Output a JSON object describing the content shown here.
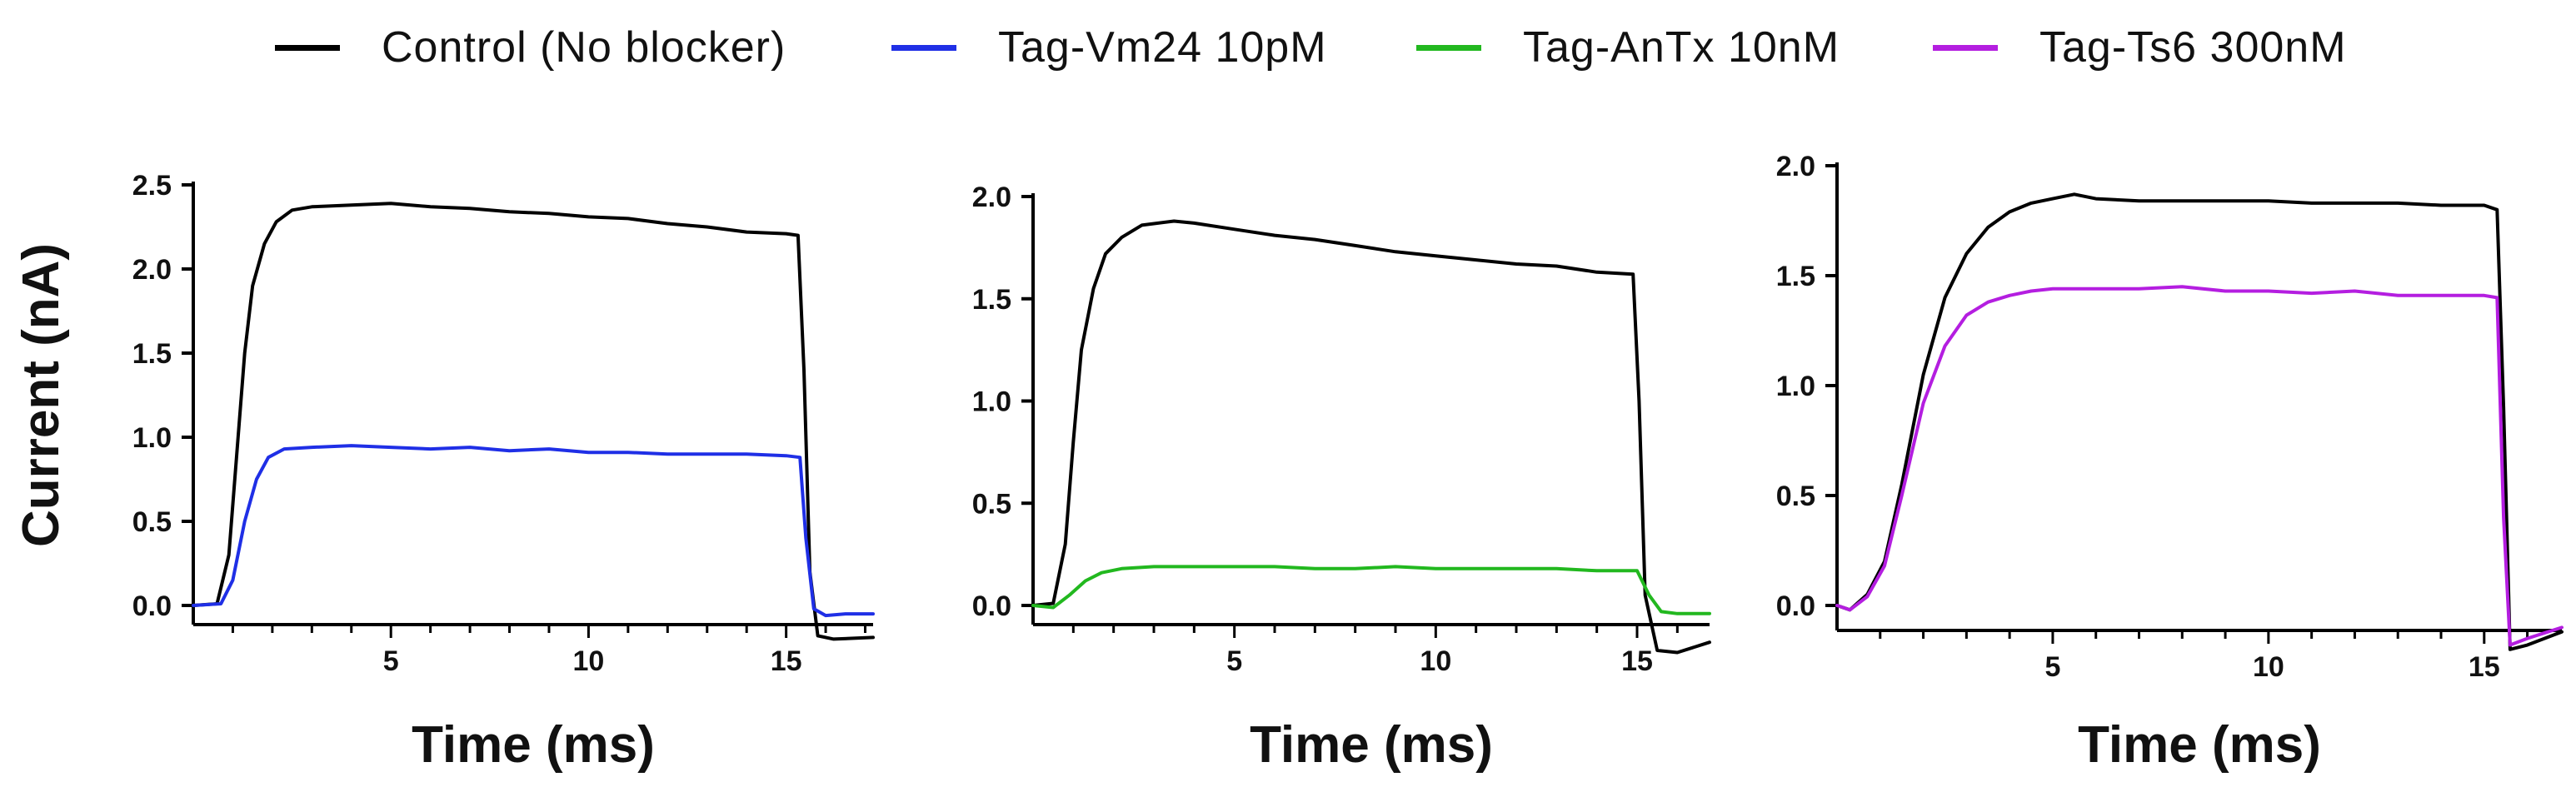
{
  "legend": [
    {
      "label": "Control (No blocker)",
      "color": "#000000"
    },
    {
      "label": "Tag-Vm24 10pM",
      "color": "#1f2fe6"
    },
    {
      "label": "Tag-AnTx 10nM",
      "color": "#22b81f"
    },
    {
      "label": "Tag-Ts6 300nM",
      "color": "#b41ee0"
    }
  ],
  "chart_data": [
    {
      "type": "line",
      "xlabel": "Time (ms)",
      "ylabel": "Current (nA)",
      "xlim": [
        0,
        17.2
      ],
      "ylim": [
        0,
        2.5
      ],
      "x_ticks": [
        5,
        10,
        15
      ],
      "x_tick_labels": [
        "5",
        "10",
        "15"
      ],
      "y_ticks": [
        0,
        0.5,
        1.0,
        1.5,
        2.0,
        2.5
      ],
      "y_tick_labels": [
        "0.0",
        "0.5",
        "1.0",
        "1.5",
        "2.0",
        "2.5"
      ],
      "grid": false,
      "series": [
        {
          "name": "Control (No blocker)",
          "color": "#000000",
          "x": [
            0,
            0.6,
            0.9,
            1.1,
            1.3,
            1.5,
            1.8,
            2.1,
            2.5,
            3,
            4,
            5,
            6,
            7,
            8,
            9,
            10,
            11,
            12,
            13,
            14,
            15,
            15.3,
            15.45,
            15.6,
            15.8,
            16.2,
            17.2
          ],
          "y": [
            0,
            0.01,
            0.3,
            0.9,
            1.5,
            1.9,
            2.15,
            2.28,
            2.35,
            2.37,
            2.38,
            2.39,
            2.37,
            2.36,
            2.34,
            2.33,
            2.31,
            2.3,
            2.27,
            2.25,
            2.22,
            2.21,
            2.2,
            1.4,
            0.2,
            -0.18,
            -0.2,
            -0.19
          ]
        },
        {
          "name": "Tag-Vm24 10pM",
          "color": "#1f2fe6",
          "x": [
            0,
            0.7,
            1.0,
            1.3,
            1.6,
            1.9,
            2.3,
            3,
            4,
            5,
            6,
            7,
            8,
            9,
            10,
            11,
            12,
            13,
            14,
            15,
            15.35,
            15.5,
            15.7,
            16.0,
            16.5,
            17.2
          ],
          "y": [
            0,
            0.01,
            0.15,
            0.5,
            0.75,
            0.88,
            0.93,
            0.94,
            0.95,
            0.94,
            0.93,
            0.94,
            0.92,
            0.93,
            0.91,
            0.91,
            0.9,
            0.9,
            0.9,
            0.89,
            0.88,
            0.4,
            -0.02,
            -0.06,
            -0.05,
            -0.05
          ]
        }
      ]
    },
    {
      "type": "line",
      "xlabel": "Time (ms)",
      "ylabel": "",
      "xlim": [
        0,
        16.8
      ],
      "ylim": [
        0,
        2.0
      ],
      "x_ticks": [
        5,
        10,
        15
      ],
      "x_tick_labels": [
        "5",
        "10",
        "15"
      ],
      "y_ticks": [
        0,
        0.5,
        1.0,
        1.5,
        2.0
      ],
      "y_tick_labels": [
        "0.0",
        "0.5",
        "1.0",
        "1.5",
        "2.0"
      ],
      "grid": false,
      "series": [
        {
          "name": "Control (No blocker)",
          "color": "#000000",
          "x": [
            0,
            0.5,
            0.8,
            1.0,
            1.2,
            1.5,
            1.8,
            2.2,
            2.7,
            3.5,
            4,
            5,
            6,
            7,
            8,
            9,
            10,
            11,
            12,
            13,
            14,
            14.9,
            15.05,
            15.2,
            15.5,
            16,
            16.8
          ],
          "y": [
            0,
            0.01,
            0.3,
            0.8,
            1.25,
            1.55,
            1.72,
            1.8,
            1.86,
            1.88,
            1.87,
            1.84,
            1.81,
            1.79,
            1.76,
            1.73,
            1.71,
            1.69,
            1.67,
            1.66,
            1.63,
            1.62,
            1.0,
            0.05,
            -0.22,
            -0.23,
            -0.18
          ]
        },
        {
          "name": "Tag-AnTx 10nM",
          "color": "#22b81f",
          "x": [
            0,
            0.5,
            0.9,
            1.3,
            1.7,
            2.2,
            3,
            4,
            5,
            6,
            7,
            8,
            9,
            10,
            11,
            12,
            13,
            14,
            15,
            15.3,
            15.6,
            16,
            16.8
          ],
          "y": [
            0,
            -0.01,
            0.05,
            0.12,
            0.16,
            0.18,
            0.19,
            0.19,
            0.19,
            0.19,
            0.18,
            0.18,
            0.19,
            0.18,
            0.18,
            0.18,
            0.18,
            0.17,
            0.17,
            0.05,
            -0.03,
            -0.04,
            -0.04
          ]
        }
      ]
    },
    {
      "type": "line",
      "xlabel": "Time (ms)",
      "ylabel": "",
      "xlim": [
        0,
        16.8
      ],
      "ylim": [
        0,
        2.0
      ],
      "x_ticks": [
        5,
        10,
        15
      ],
      "x_tick_labels": [
        "5",
        "10",
        "15"
      ],
      "y_ticks": [
        0,
        0.5,
        1.0,
        1.5,
        2.0
      ],
      "y_tick_labels": [
        "0.0",
        "0.5",
        "1.0",
        "1.5",
        "2.0"
      ],
      "grid": false,
      "series": [
        {
          "name": "Control (No blocker)",
          "color": "#000000",
          "x": [
            0,
            0.3,
            0.7,
            1.1,
            1.5,
            2.0,
            2.5,
            3.0,
            3.5,
            4.0,
            4.5,
            5,
            5.5,
            6,
            7,
            8,
            9,
            10,
            11,
            12,
            13,
            14,
            15,
            15.3,
            15.45,
            15.6,
            16.0,
            16.8
          ],
          "y": [
            0,
            -0.02,
            0.05,
            0.2,
            0.55,
            1.05,
            1.4,
            1.6,
            1.72,
            1.79,
            1.83,
            1.85,
            1.87,
            1.85,
            1.84,
            1.84,
            1.84,
            1.84,
            1.83,
            1.83,
            1.83,
            1.82,
            1.82,
            1.8,
            0.9,
            -0.2,
            -0.18,
            -0.12
          ]
        },
        {
          "name": "Tag-Ts6 300nM",
          "color": "#b41ee0",
          "x": [
            0,
            0.3,
            0.7,
            1.1,
            1.5,
            2.0,
            2.5,
            3.0,
            3.5,
            4.0,
            4.5,
            5,
            6,
            7,
            8,
            9,
            10,
            11,
            12,
            13,
            14,
            15,
            15.3,
            15.45,
            15.6,
            16.0,
            16.8
          ],
          "y": [
            0,
            -0.02,
            0.04,
            0.18,
            0.5,
            0.92,
            1.18,
            1.32,
            1.38,
            1.41,
            1.43,
            1.44,
            1.44,
            1.44,
            1.45,
            1.43,
            1.43,
            1.42,
            1.43,
            1.41,
            1.41,
            1.41,
            1.4,
            0.4,
            -0.18,
            -0.15,
            -0.1
          ]
        }
      ]
    }
  ]
}
